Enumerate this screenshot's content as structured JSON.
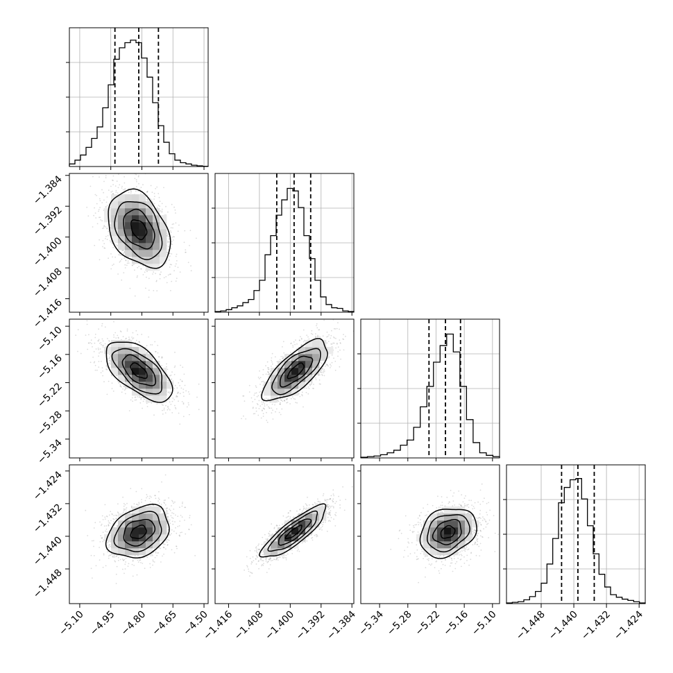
{
  "chart_data": {
    "type": "corner",
    "title": "",
    "grid": true,
    "parameters": [
      {
        "range": [
          -5.15,
          -4.48
        ],
        "ticks": [
          -5.1,
          -4.95,
          -4.8,
          -4.65,
          -4.5
        ],
        "tick_labels": [
          "−5.10",
          "−4.95",
          "−4.80",
          "−4.65",
          "−4.50"
        ],
        "quantiles": [
          -4.93,
          -4.815,
          -4.72
        ],
        "hist_counts": [
          2,
          5,
          9,
          15,
          22,
          31,
          46,
          64,
          84,
          93,
          97,
          99,
          97,
          85,
          70,
          50,
          32,
          19,
          10,
          5,
          3,
          2,
          1,
          0.5,
          0.2
        ]
      },
      {
        "range": [
          -1.4195,
          -1.3835
        ],
        "ticks": [
          -1.416,
          -1.408,
          -1.4,
          -1.392,
          -1.384
        ],
        "tick_labels": [
          "−1.416",
          "−1.408",
          "−1.400",
          "−1.392",
          "−1.384"
        ],
        "quantiles": [
          -1.4035,
          -1.399,
          -1.3947
        ],
        "hist_counts": [
          0.5,
          1,
          2,
          3.5,
          5,
          7.5,
          10,
          17,
          25,
          45,
          60,
          76,
          88,
          97,
          95,
          82,
          60,
          42,
          25,
          12,
          6,
          3.5,
          3,
          1,
          0.5
        ]
      },
      {
        "range": [
          -5.38,
          -5.085
        ],
        "ticks": [
          -5.34,
          -5.28,
          -5.22,
          -5.16,
          -5.1
        ],
        "tick_labels": [
          "−5.34",
          "−5.28",
          "−5.22",
          "−5.16",
          "−5.10"
        ],
        "quantiles": [
          -5.235,
          -5.2,
          -5.168
        ],
        "hist_counts": [
          0.5,
          1,
          1.5,
          2.5,
          4,
          6,
          10,
          14,
          24,
          40,
          56,
          75,
          88,
          97,
          83,
          56,
          30,
          12,
          4,
          2,
          1
        ]
      },
      {
        "range": [
          -1.4565,
          -1.4225
        ],
        "ticks": [
          -1.448,
          -1.44,
          -1.432,
          -1.424
        ],
        "tick_labels": [
          "−1.448",
          "−1.440",
          "−1.432",
          "−1.424"
        ],
        "quantiles": [
          -1.443,
          -1.439,
          -1.435
        ],
        "hist_counts": [
          0.5,
          1,
          1.5,
          3,
          5.5,
          9.5,
          16,
          31,
          51,
          79,
          91,
          97,
          98,
          82,
          61,
          39,
          23,
          13,
          7,
          5,
          3.5,
          2.5,
          1.5,
          0.5
        ]
      }
    ],
    "pairs": [
      {
        "x": 0,
        "y": 1,
        "mean": [
          -4.815,
          -1.398
        ],
        "sd": [
          0.075,
          0.005
        ],
        "rho": -0.35
      },
      {
        "x": 0,
        "y": 2,
        "mean": [
          -4.815,
          -5.195
        ],
        "sd": [
          0.08,
          0.032
        ],
        "rho": -0.6
      },
      {
        "x": 1,
        "y": 2,
        "mean": [
          -1.3985,
          -5.195
        ],
        "sd": [
          0.0042,
          0.032
        ],
        "rho": 0.72
      },
      {
        "x": 0,
        "y": 3,
        "mean": [
          -4.815,
          -1.439
        ],
        "sd": [
          0.075,
          0.0032
        ],
        "rho": 0.3
      },
      {
        "x": 1,
        "y": 3,
        "mean": [
          -1.399,
          -1.439
        ],
        "sd": [
          0.0042,
          0.0032
        ],
        "rho": 0.85
      },
      {
        "x": 2,
        "y": 3,
        "mean": [
          -5.195,
          -1.439
        ],
        "sd": [
          0.03,
          0.003
        ],
        "rho": 0.25
      }
    ],
    "contour_levels_sigma": [
      0.5,
      1.0,
      1.5,
      2.0
    ]
  }
}
